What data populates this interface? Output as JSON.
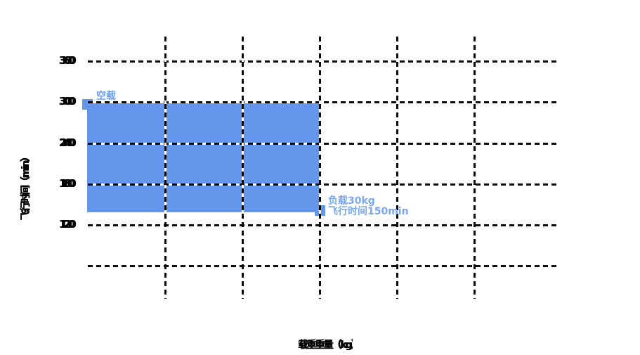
{
  "chart_data": {
    "type": "area",
    "title": "",
    "xlabel": "载重重量（kg）",
    "ylabel": "飞行时间（min）",
    "y_tick_labels": [
      "360",
      "300",
      "240",
      "180",
      "120"
    ],
    "y_gridline_values": [
      360,
      300,
      240,
      180,
      120,
      60
    ],
    "x_tick_labels": [],
    "grid": "dashed",
    "legend": "none",
    "points": [
      {
        "name": "空载",
        "payload_kg": 0,
        "flight_time_min": 300
      },
      {
        "name": "负载30kg",
        "payload_kg": 30,
        "flight_time_min": 150
      }
    ],
    "annotations": {
      "empty_load": "空载",
      "load_line1": "负载30kg",
      "load_line2": "飞行时间150min"
    },
    "colors": {
      "fill": "#6496EB",
      "marker": "#6496EB",
      "annotation_empty_text": "#6D9EEC",
      "annotation_load_text": "#7AA7EF",
      "grid_dash": "#0A0A0A",
      "axis_text": "#000000",
      "background": "#FFFFFF"
    }
  }
}
